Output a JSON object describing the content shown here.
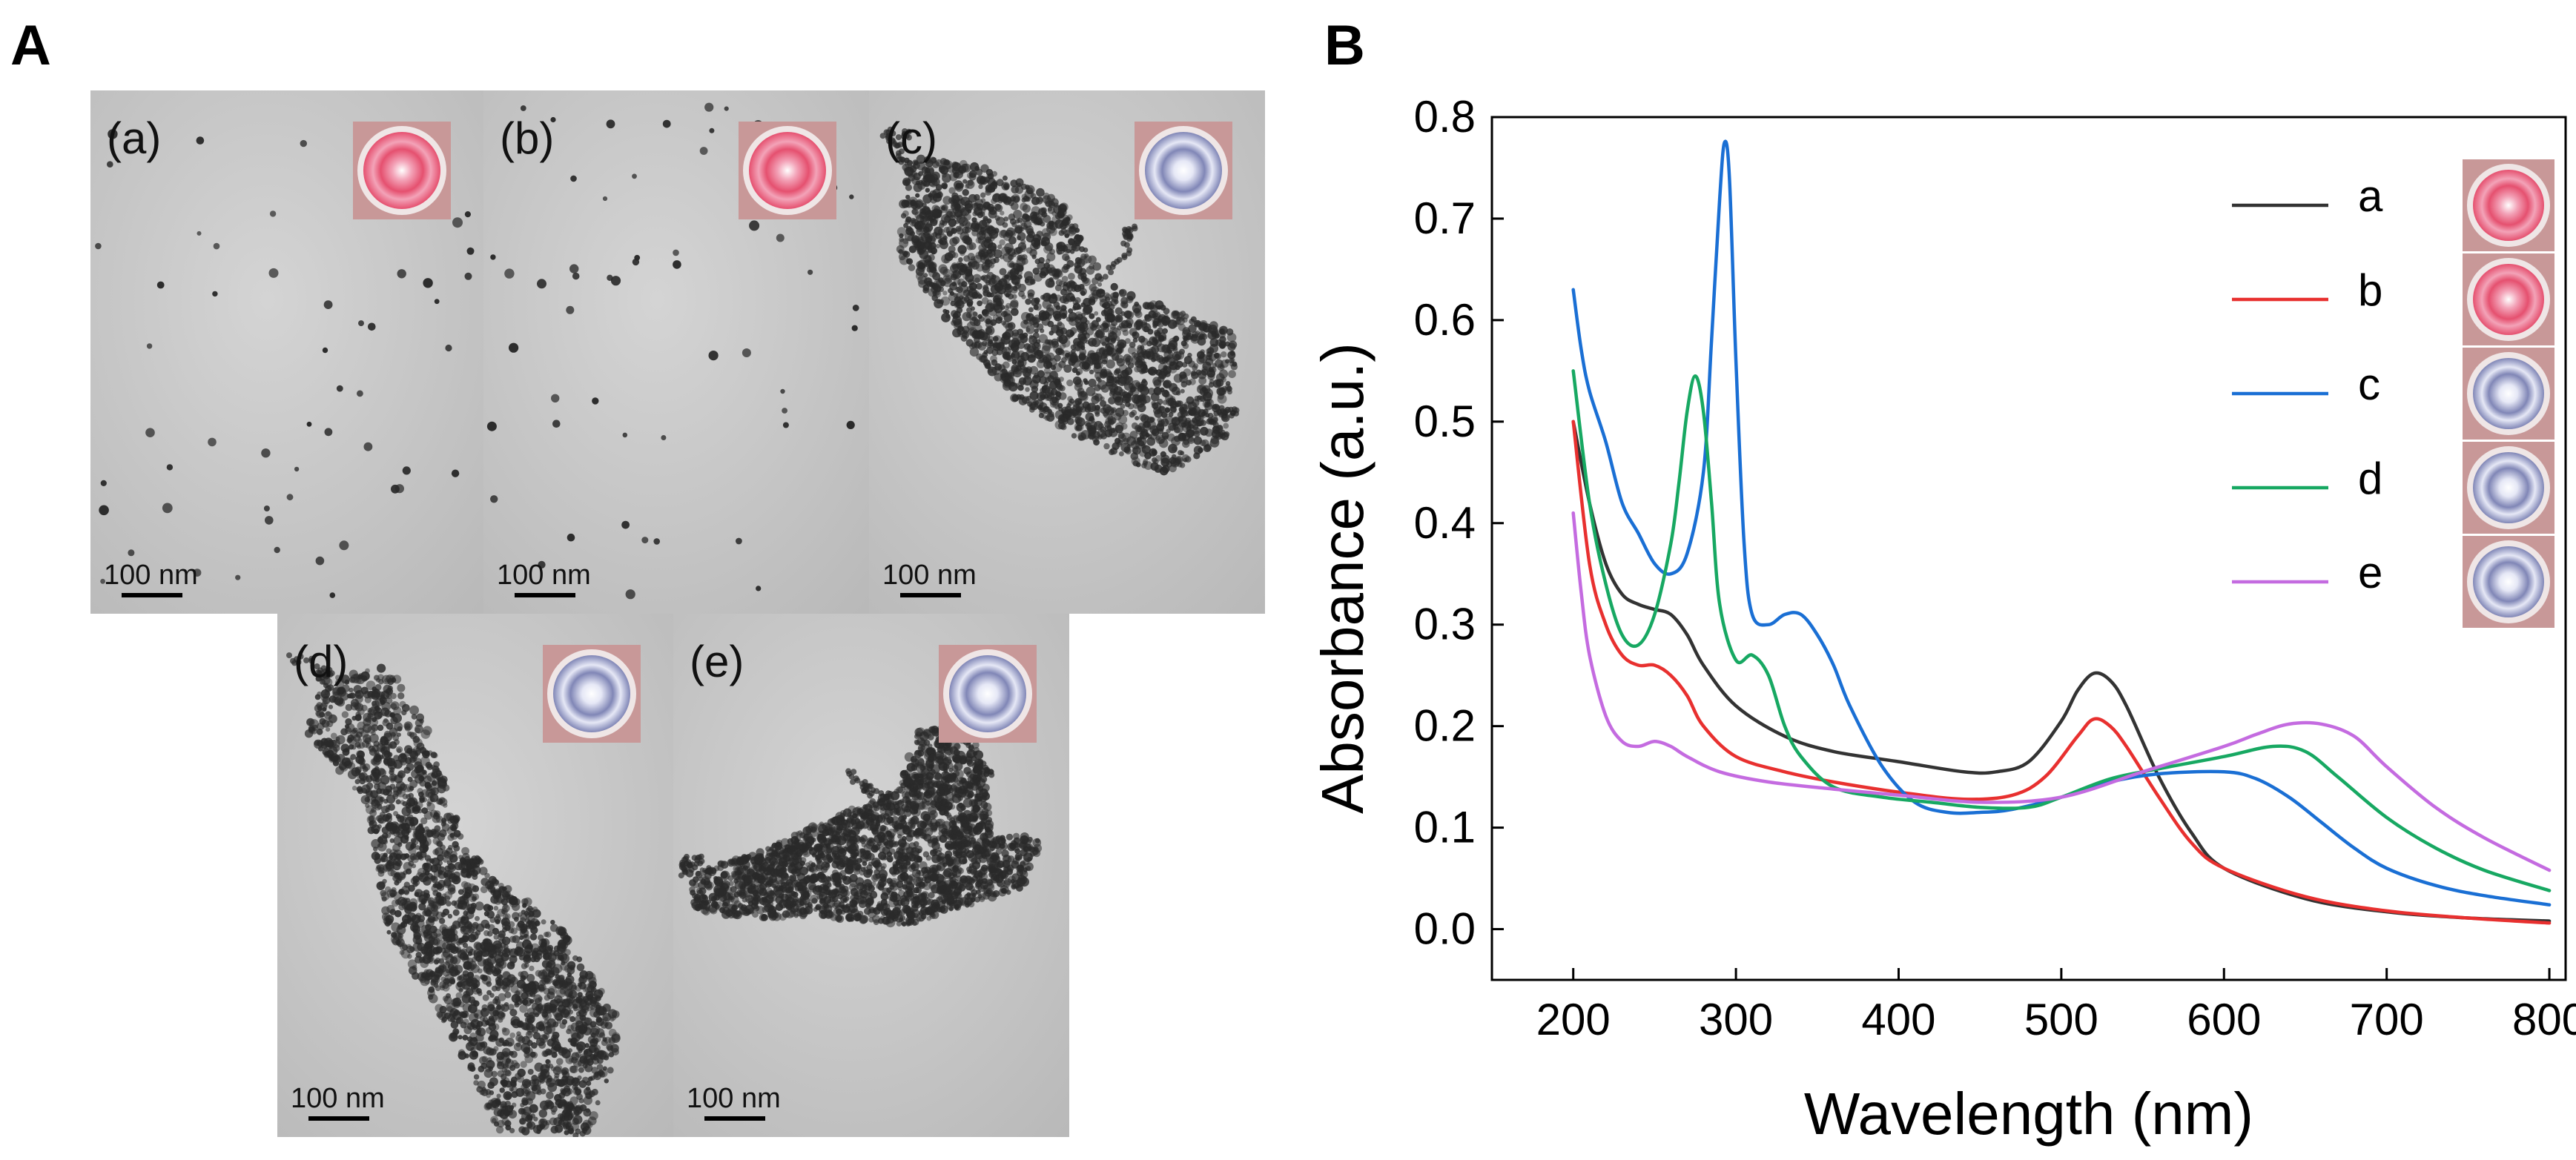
{
  "panels": {
    "A_label": "A",
    "B_label": "B"
  },
  "tem_images": [
    {
      "label": "(a)",
      "scale": "100 nm",
      "vial": "red",
      "morphology": "dispersed"
    },
    {
      "label": "(b)",
      "scale": "100 nm",
      "vial": "red",
      "morphology": "dispersed"
    },
    {
      "label": "(c)",
      "scale": "100 nm",
      "vial": "blue",
      "morphology": "aggregate"
    },
    {
      "label": "(d)",
      "scale": "100 nm",
      "vial": "blue",
      "morphology": "aggregate"
    },
    {
      "label": "(e)",
      "scale": "100 nm",
      "vial": "blue",
      "morphology": "aggregate"
    }
  ],
  "colors": {
    "vial_red_center": "#f3a3b8",
    "vial_red_ring": "#e5506f",
    "vial_blue_center": "#e6e8f6",
    "vial_blue_ring": "#8086b6",
    "vial_frame": "#c89898",
    "tem_bg": "#c9c9c9",
    "particle": "#2a2a2a"
  },
  "chart_data": {
    "type": "line",
    "title": "",
    "xlabel": "Wavelength (nm)",
    "ylabel": "Absorbance (a.u.)",
    "xlim": [
      150,
      810
    ],
    "ylim": [
      -0.05,
      0.8
    ],
    "xticks": [
      200,
      300,
      400,
      500,
      600,
      700,
      800
    ],
    "yticks": [
      0.0,
      0.1,
      0.2,
      0.3,
      0.4,
      0.5,
      0.6,
      0.7,
      0.8
    ],
    "xtick_labels": [
      "200",
      "300",
      "400",
      "500",
      "600",
      "700",
      "800"
    ],
    "ytick_labels": [
      "0.0",
      "0.1",
      "0.2",
      "0.3",
      "0.4",
      "0.5",
      "0.6",
      "0.7",
      "0.8"
    ],
    "legend_position": "top-right",
    "series": [
      {
        "name": "a",
        "color": "#333333",
        "vial": "red",
        "x": [
          200,
          210,
          220,
          230,
          240,
          250,
          260,
          270,
          280,
          300,
          330,
          360,
          400,
          440,
          460,
          480,
          500,
          510,
          520,
          530,
          540,
          560,
          580,
          600,
          650,
          700,
          750,
          800
        ],
        "y": [
          0.5,
          0.42,
          0.36,
          0.33,
          0.32,
          0.315,
          0.31,
          0.29,
          0.26,
          0.22,
          0.19,
          0.175,
          0.165,
          0.155,
          0.155,
          0.165,
          0.205,
          0.235,
          0.252,
          0.245,
          0.22,
          0.15,
          0.095,
          0.06,
          0.03,
          0.017,
          0.011,
          0.008
        ]
      },
      {
        "name": "b",
        "color": "#e8302f",
        "vial": "red",
        "x": [
          200,
          210,
          220,
          230,
          240,
          250,
          260,
          270,
          280,
          300,
          330,
          360,
          400,
          440,
          470,
          490,
          510,
          520,
          530,
          540,
          560,
          580,
          600,
          650,
          700,
          750,
          800
        ],
        "y": [
          0.5,
          0.36,
          0.3,
          0.27,
          0.26,
          0.26,
          0.25,
          0.23,
          0.2,
          0.17,
          0.155,
          0.145,
          0.135,
          0.128,
          0.132,
          0.15,
          0.19,
          0.207,
          0.2,
          0.18,
          0.13,
          0.085,
          0.06,
          0.032,
          0.018,
          0.011,
          0.006
        ]
      },
      {
        "name": "c",
        "color": "#1a6fd4",
        "vial": "blue",
        "x": [
          200,
          205,
          210,
          220,
          230,
          240,
          250,
          260,
          270,
          280,
          285,
          290,
          293,
          296,
          300,
          305,
          310,
          320,
          330,
          340,
          350,
          360,
          370,
          390,
          410,
          430,
          450,
          470,
          500,
          530,
          560,
          600,
          620,
          640,
          660,
          680,
          700,
          730,
          760,
          800
        ],
        "y": [
          0.63,
          0.57,
          0.53,
          0.48,
          0.42,
          0.39,
          0.36,
          0.35,
          0.37,
          0.45,
          0.58,
          0.72,
          0.775,
          0.74,
          0.56,
          0.38,
          0.31,
          0.3,
          0.31,
          0.31,
          0.29,
          0.26,
          0.22,
          0.16,
          0.125,
          0.115,
          0.115,
          0.118,
          0.13,
          0.145,
          0.153,
          0.155,
          0.148,
          0.13,
          0.105,
          0.08,
          0.06,
          0.043,
          0.033,
          0.024
        ]
      },
      {
        "name": "d",
        "color": "#17a862",
        "vial": "blue",
        "x": [
          200,
          210,
          220,
          230,
          240,
          250,
          260,
          265,
          270,
          275,
          280,
          285,
          290,
          300,
          310,
          320,
          330,
          340,
          360,
          390,
          420,
          450,
          480,
          500,
          530,
          560,
          600,
          630,
          650,
          670,
          700,
          730,
          760,
          800
        ],
        "y": [
          0.55,
          0.42,
          0.34,
          0.29,
          0.28,
          0.31,
          0.38,
          0.44,
          0.51,
          0.545,
          0.51,
          0.42,
          0.32,
          0.265,
          0.27,
          0.25,
          0.2,
          0.17,
          0.14,
          0.13,
          0.125,
          0.12,
          0.12,
          0.13,
          0.148,
          0.158,
          0.17,
          0.18,
          0.175,
          0.15,
          0.11,
          0.08,
          0.058,
          0.038
        ]
      },
      {
        "name": "e",
        "color": "#c46be0",
        "vial": "blue",
        "x": [
          200,
          205,
          210,
          220,
          230,
          240,
          250,
          260,
          270,
          290,
          320,
          360,
          400,
          450,
          500,
          550,
          600,
          620,
          640,
          660,
          680,
          700,
          730,
          760,
          800
        ],
        "y": [
          0.41,
          0.33,
          0.27,
          0.21,
          0.185,
          0.18,
          0.185,
          0.18,
          0.17,
          0.155,
          0.145,
          0.138,
          0.132,
          0.125,
          0.13,
          0.155,
          0.18,
          0.192,
          0.202,
          0.202,
          0.19,
          0.16,
          0.12,
          0.09,
          0.058
        ]
      }
    ]
  }
}
